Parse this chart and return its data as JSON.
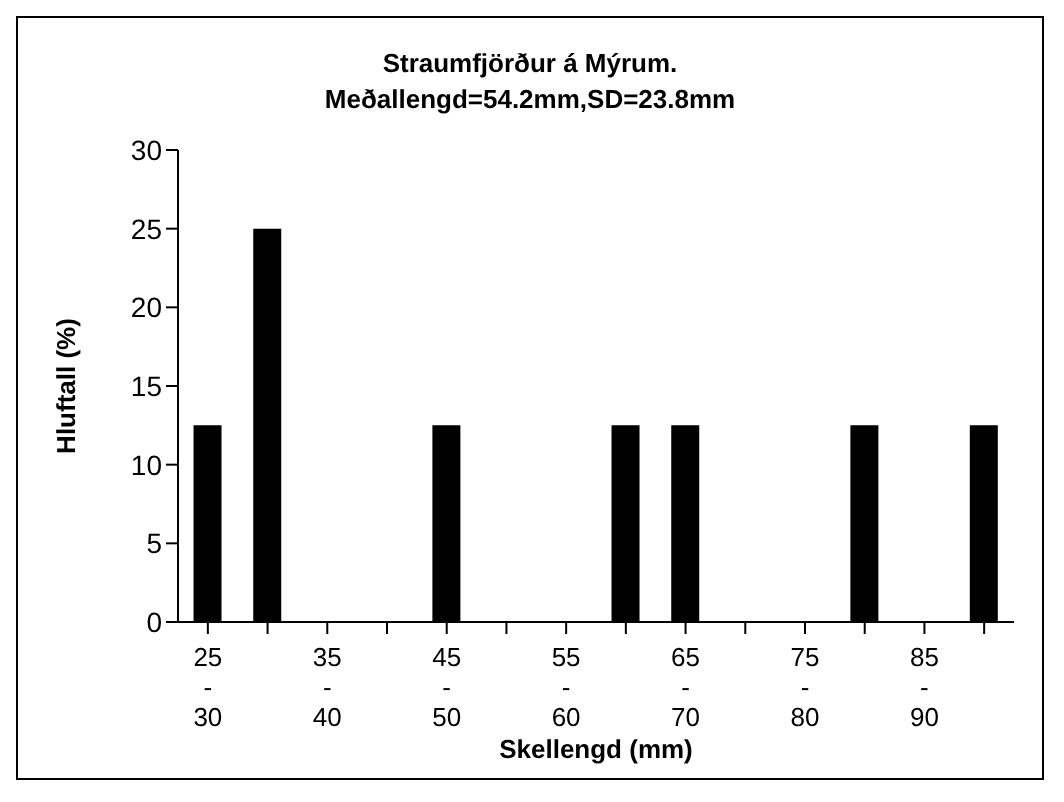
{
  "chart_data": {
    "type": "bar",
    "title": "Straumfjörður á Mýrum.\nMeðallengd=54.2mm,SD=23.8mm",
    "xlabel": "Skellengd (mm)",
    "ylabel": "Hluftall (%)",
    "categories": [
      "25 - 30",
      null,
      "35 - 40",
      null,
      "45 - 50",
      null,
      "55 - 60",
      null,
      "65 - 70",
      null,
      "75 - 80",
      null,
      "85 - 90",
      null
    ],
    "values": [
      12.5,
      25,
      0,
      0,
      12.5,
      0,
      0,
      12.5,
      12.5,
      0,
      0,
      12.5,
      0,
      12.5
    ],
    "color": "#000000",
    "ylim": [
      0,
      30
    ],
    "yticks": [
      0,
      5,
      10,
      15,
      20,
      25,
      30
    ]
  }
}
